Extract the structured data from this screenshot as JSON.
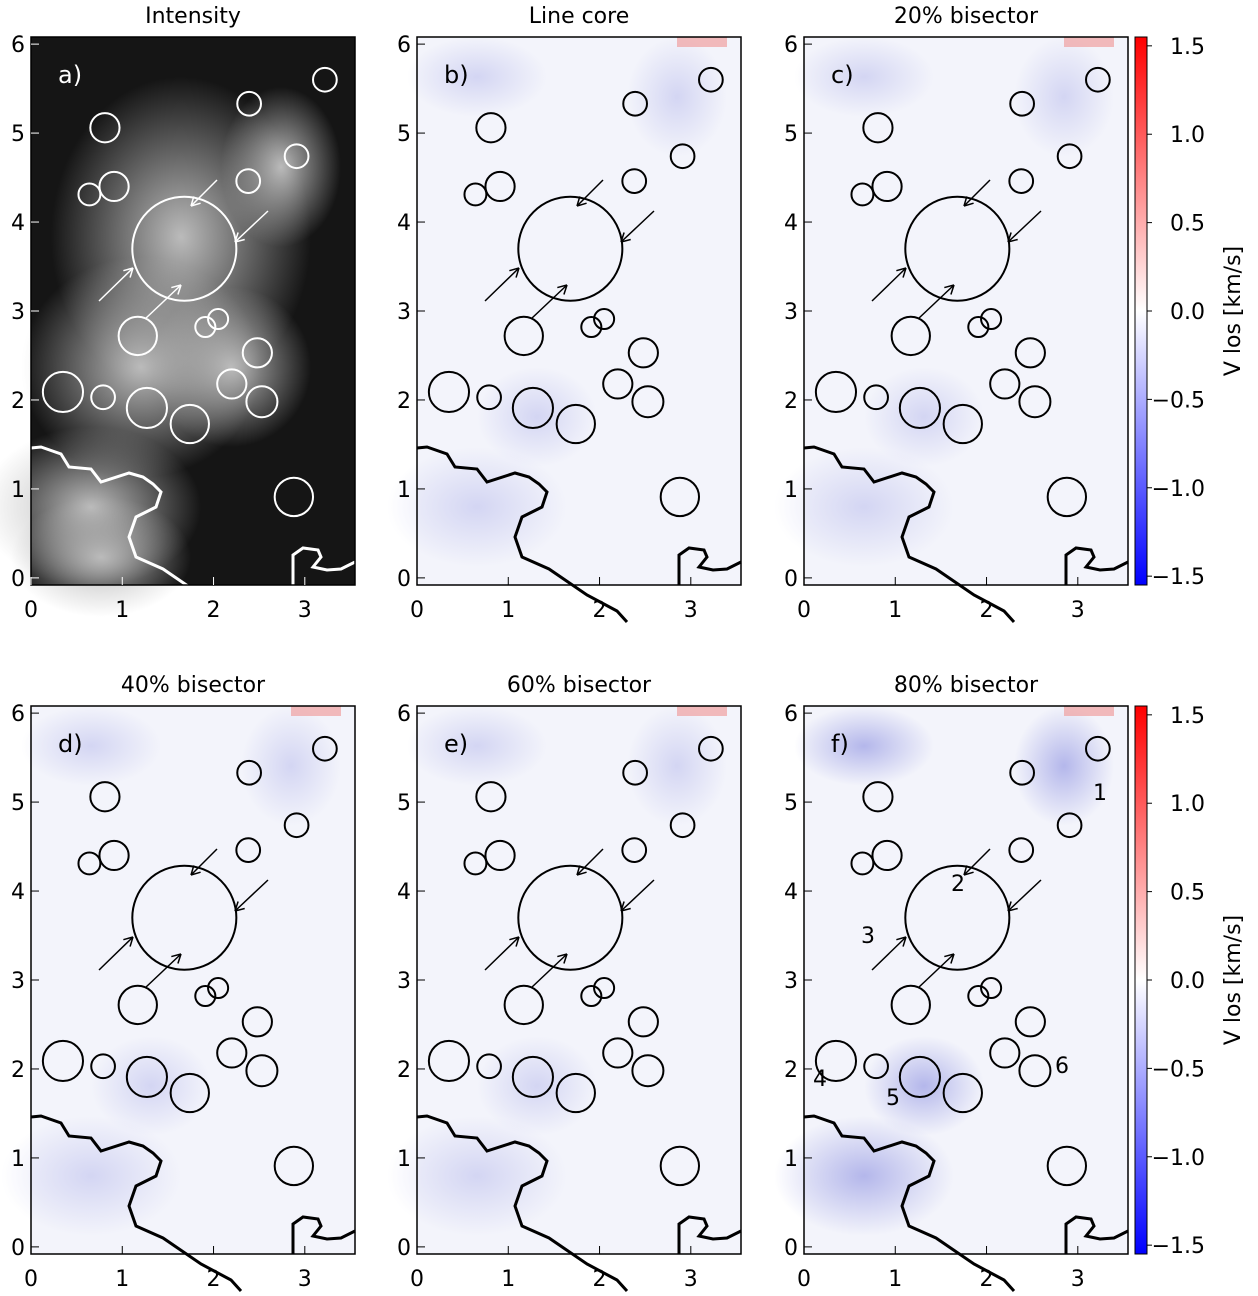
{
  "chart_data": [
    {
      "type": "image",
      "title": "Intensity",
      "label": "a)",
      "xlim": [
        0,
        3.55
      ],
      "ylim": [
        -0.08,
        6.08
      ],
      "xticks": [
        0,
        1,
        2,
        3
      ],
      "yticks": [
        0,
        1,
        2,
        3,
        4,
        5,
        6
      ]
    },
    {
      "type": "image",
      "title": "Line core",
      "label": "b)",
      "xlim": [
        0,
        3.55
      ],
      "ylim": [
        -0.08,
        6.08
      ],
      "xticks": [
        0,
        1,
        2,
        3
      ],
      "yticks": [
        0,
        1,
        2,
        3,
        4,
        5,
        6
      ]
    },
    {
      "type": "image",
      "title": "20% bisector",
      "label": "c)",
      "xlim": [
        0,
        3.55
      ],
      "ylim": [
        -0.08,
        6.08
      ],
      "xticks": [
        0,
        1,
        2,
        3
      ],
      "yticks": [
        0,
        1,
        2,
        3,
        4,
        5,
        6
      ]
    },
    {
      "type": "image",
      "title": "40% bisector",
      "label": "d)",
      "xlim": [
        0,
        3.55
      ],
      "ylim": [
        -0.08,
        6.08
      ],
      "xticks": [
        0,
        1,
        2,
        3
      ],
      "yticks": [
        0,
        1,
        2,
        3,
        4,
        5,
        6
      ]
    },
    {
      "type": "image",
      "title": "60% bisector",
      "label": "e)",
      "xlim": [
        0,
        3.55
      ],
      "ylim": [
        -0.08,
        6.08
      ],
      "xticks": [
        0,
        1,
        2,
        3
      ],
      "yticks": [
        0,
        1,
        2,
        3,
        4,
        5,
        6
      ]
    },
    {
      "type": "image",
      "title": "80% bisector",
      "label": "f)",
      "xlim": [
        0,
        3.55
      ],
      "ylim": [
        -0.08,
        6.08
      ],
      "xticks": [
        0,
        1,
        2,
        3
      ],
      "yticks": [
        0,
        1,
        2,
        3,
        4,
        5,
        6
      ],
      "annotations": [
        "1",
        "2",
        "3",
        "4",
        "5",
        "6"
      ]
    }
  ],
  "circles": [
    {
      "x": 3.22,
      "y": 5.6,
      "r": 0.13
    },
    {
      "x": 2.39,
      "y": 5.33,
      "r": 0.13
    },
    {
      "x": 0.81,
      "y": 5.06,
      "r": 0.16
    },
    {
      "x": 2.91,
      "y": 4.74,
      "r": 0.13
    },
    {
      "x": 2.38,
      "y": 4.46,
      "r": 0.13
    },
    {
      "x": 0.91,
      "y": 4.4,
      "r": 0.16
    },
    {
      "x": 0.64,
      "y": 4.31,
      "r": 0.12
    },
    {
      "x": 1.68,
      "y": 3.7,
      "r": 0.57
    },
    {
      "x": 1.17,
      "y": 2.72,
      "r": 0.21
    },
    {
      "x": 1.91,
      "y": 2.82,
      "r": 0.11
    },
    {
      "x": 2.05,
      "y": 2.91,
      "r": 0.11
    },
    {
      "x": 2.48,
      "y": 2.53,
      "r": 0.16
    },
    {
      "x": 2.2,
      "y": 2.18,
      "r": 0.16
    },
    {
      "x": 0.35,
      "y": 2.09,
      "r": 0.22
    },
    {
      "x": 0.79,
      "y": 2.03,
      "r": 0.13
    },
    {
      "x": 1.27,
      "y": 1.91,
      "r": 0.22
    },
    {
      "x": 1.74,
      "y": 1.73,
      "r": 0.21
    },
    {
      "x": 2.53,
      "y": 1.98,
      "r": 0.17
    },
    {
      "x": 2.88,
      "y": 0.91,
      "r": 0.21
    }
  ],
  "colorbar": {
    "label": "V los [km/s]",
    "ylim": [
      -1.55,
      1.55
    ],
    "yticks": [
      {
        "value": 1.5,
        "label": "1.5"
      },
      {
        "value": 1.0,
        "label": "1.0"
      },
      {
        "value": 0.5,
        "label": "0.5"
      },
      {
        "value": 0.0,
        "label": "0.0"
      },
      {
        "value": -0.5,
        "label": "−0.5"
      },
      {
        "value": -1.0,
        "label": "−1.0"
      },
      {
        "value": -1.5,
        "label": "−1.5"
      }
    ]
  }
}
